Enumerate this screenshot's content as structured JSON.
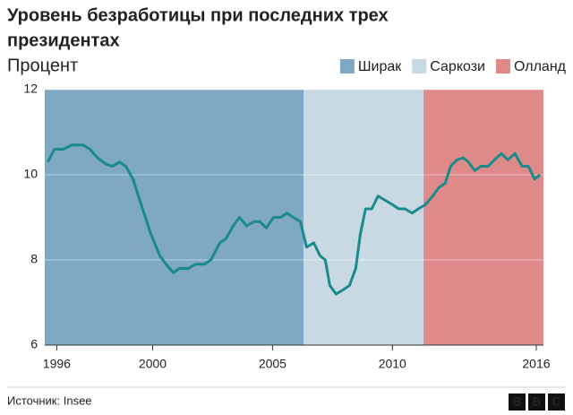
{
  "chart_data": {
    "type": "line",
    "title": [
      "Уровень безработицы при последних трех",
      "президентах"
    ],
    "subtitle": "Процент",
    "periods": [
      {
        "name": "Ширак",
        "color": "#7fa8c4",
        "start": 1995.5,
        "end": 2006.3
      },
      {
        "name": "Саркози",
        "color": "#c8d9e4",
        "start": 2006.3,
        "end": 2011.3
      },
      {
        "name": "Олланд",
        "color": "#de8a8a",
        "start": 2011.3,
        "end": 2016.3
      }
    ],
    "x": [
      1995.63,
      1995.9,
      1996.27,
      1996.64,
      1997.09,
      1997.39,
      1997.69,
      1998.06,
      1998.32,
      1998.62,
      1998.88,
      1999.18,
      1999.55,
      1999.93,
      2000.3,
      2000.56,
      2000.86,
      2001.12,
      2001.49,
      2001.79,
      2002.16,
      2002.43,
      2002.8,
      2003.06,
      2003.36,
      2003.62,
      2003.92,
      2004.22,
      2004.48,
      2004.74,
      2005.04,
      2005.34,
      2005.6,
      2005.86,
      2006.16,
      2006.42,
      2006.72,
      2006.98,
      2007.2,
      2007.39,
      2007.65,
      2007.95,
      2008.21,
      2008.47,
      2008.66,
      2008.88,
      2009.14,
      2009.4,
      2009.7,
      2010.0,
      2010.26,
      2010.52,
      2010.82,
      2011.08,
      2011.38,
      2011.68,
      2011.94,
      2012.2,
      2012.43,
      2012.69,
      2012.95,
      2013.17,
      2013.43,
      2013.69,
      2013.99,
      2014.25,
      2014.55,
      2014.81,
      2015.11,
      2015.41,
      2015.67,
      2015.93,
      2016.16
    ],
    "series": [
      {
        "color": "#1a8a8a",
        "values": [
          10.3,
          10.6,
          10.6,
          10.7,
          10.7,
          10.6,
          10.4,
          10.25,
          10.2,
          10.3,
          10.2,
          9.9,
          9.25,
          8.6,
          8.1,
          7.9,
          7.7,
          7.8,
          7.8,
          7.9,
          7.9,
          8.0,
          8.4,
          8.5,
          8.8,
          9.0,
          8.8,
          8.9,
          8.9,
          8.75,
          9.0,
          9.0,
          9.1,
          9.0,
          8.9,
          8.3,
          8.4,
          8.1,
          8.0,
          7.4,
          7.2,
          7.3,
          7.4,
          7.8,
          8.6,
          9.2,
          9.2,
          9.5,
          9.4,
          9.3,
          9.2,
          9.2,
          9.1,
          9.2,
          9.3,
          9.5,
          9.7,
          9.8,
          10.2,
          10.35,
          10.4,
          10.3,
          10.1,
          10.2,
          10.2,
          10.35,
          10.5,
          10.35,
          10.5,
          10.2,
          10.2,
          9.9,
          10.0
        ]
      }
    ],
    "xlim": [
      1995.5,
      2016.3
    ],
    "xticks": [
      1996,
      2000,
      2005,
      2010,
      2016
    ],
    "ylim": [
      6,
      12
    ],
    "yticks": [
      6,
      8,
      10,
      12
    ],
    "grid": true,
    "source": "Источник: Insee",
    "logo": [
      "B",
      "B",
      "C"
    ]
  }
}
